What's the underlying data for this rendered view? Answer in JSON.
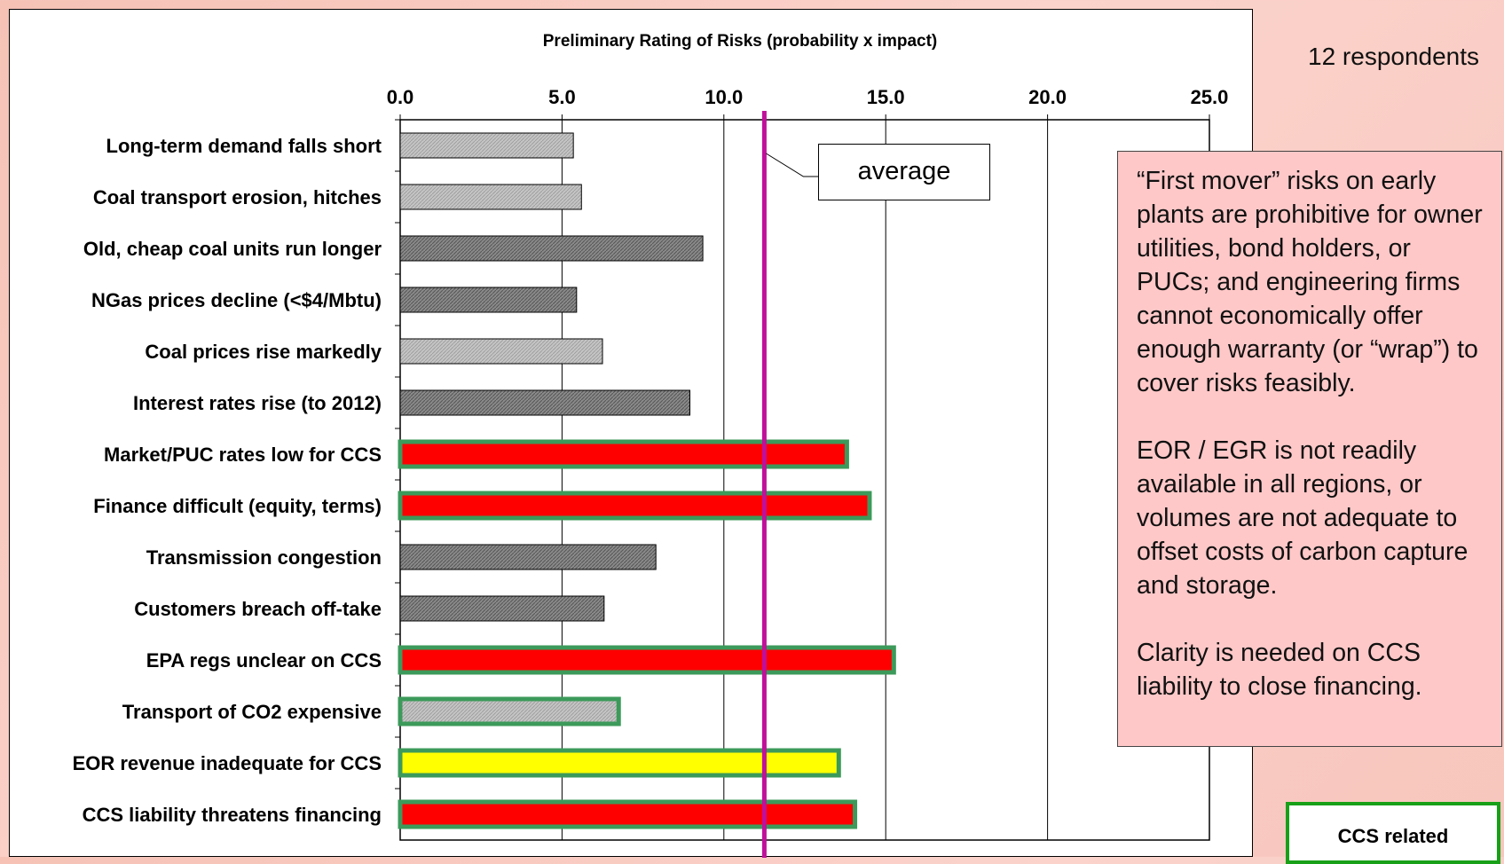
{
  "chart_data": {
    "type": "bar",
    "orientation": "horizontal",
    "title": "Preliminary Rating of Risks (probability x impact)",
    "xlim": [
      0,
      25
    ],
    "xticks": [
      "0.0",
      "5.0",
      "10.0",
      "15.0",
      "20.0",
      "25.0"
    ],
    "x_axis_position": "top",
    "grid": true,
    "average": 11.25,
    "average_label": "average",
    "average_color": "#c0109a",
    "categories": [
      "Long-term demand falls short",
      "Coal transport erosion, hitches",
      "Old, cheap coal units run longer",
      "NGas prices decline (<$4/Mbtu)",
      "Coal prices rise markedly",
      "Interest rates rise (to 2012)",
      "Market/PUC rates low for CCS",
      "Finance difficult (equity, terms)",
      "Transmission congestion",
      "Customers breach off-take",
      "EPA regs unclear on CCS",
      "Transport of CO2 expensive",
      "EOR revenue inadequate for CCS",
      "CCS liability threatens financing"
    ],
    "values": [
      5.35,
      5.6,
      9.35,
      5.45,
      6.25,
      8.95,
      13.8,
      14.5,
      7.9,
      6.3,
      15.25,
      6.75,
      13.55,
      14.05
    ],
    "styles": [
      "light",
      "light",
      "dark",
      "dark",
      "light",
      "dark",
      "red",
      "red",
      "dark",
      "dark",
      "red",
      "light",
      "yellow",
      "red"
    ],
    "ccs_related": [
      false,
      false,
      false,
      false,
      false,
      false,
      true,
      true,
      false,
      false,
      true,
      true,
      true,
      true
    ],
    "colors": {
      "light_fill": "#c4c4c4",
      "dark_fill": "#8a8a8a",
      "red": "#ff0000",
      "yellow": "#ffff00",
      "ccs_border": "#3c9a5a",
      "legend_border": "#18a018"
    }
  },
  "side": {
    "respondents": "12 respondents",
    "note_paragraphs": [
      "“First mover” risks on early plants are prohibitive for owner utilities, bond holders, or PUCs; and engineering firms cannot economically offer enough warranty (or “wrap”) to cover risks feasibly.",
      "EOR / EGR is not readily available in all regions, or volumes are not adequate to offset costs of carbon capture and storage.",
      "Clarity is needed on CCS liability to close financing."
    ],
    "legend_label": "CCS related"
  }
}
